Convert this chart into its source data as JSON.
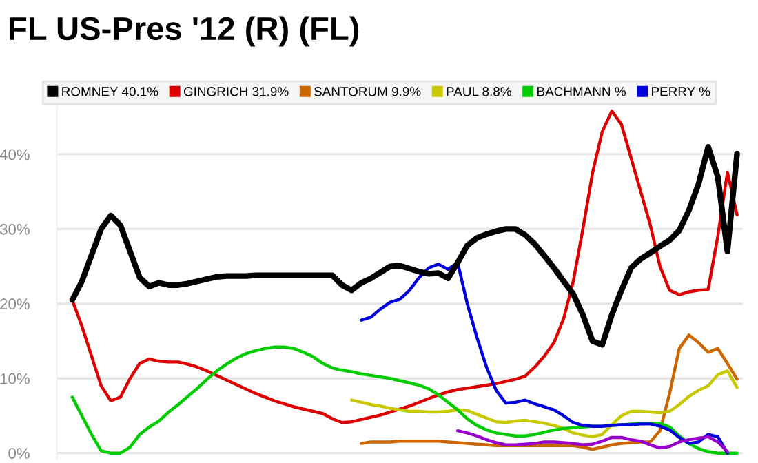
{
  "chart_data": {
    "type": "line",
    "title": "FL US-Pres '12 (R) (FL)",
    "categories": [
      null,
      null,
      null,
      null,
      null,
      null,
      null,
      null,
      null,
      null,
      null,
      null,
      null,
      null,
      null,
      null,
      null,
      null,
      null,
      null,
      null,
      null,
      null,
      null,
      null,
      null,
      null,
      null,
      null,
      null,
      null,
      null,
      null,
      null,
      null,
      null,
      null,
      null,
      null,
      null,
      null,
      null,
      null,
      null,
      null,
      null,
      null,
      null,
      null,
      null,
      null,
      null,
      null,
      null,
      null,
      null,
      null,
      null,
      null,
      null,
      null,
      null,
      null,
      null,
      null,
      null,
      null,
      null,
      null,
      null
    ],
    "series": [
      {
        "name": "ROMNEY 40.1%",
        "color": "#000000",
        "values": [
          20.5,
          23,
          26.5,
          30,
          31.8,
          30.5,
          27,
          23.5,
          22.3,
          22.8,
          22.5,
          22.5,
          22.7,
          23,
          23.3,
          23.6,
          23.7,
          23.7,
          23.7,
          23.8,
          23.8,
          23.8,
          23.8,
          23.8,
          23.8,
          23.8,
          23.8,
          23.8,
          22.5,
          21.8,
          22.8,
          23.4,
          24.2,
          25,
          25.1,
          24.7,
          24.3,
          24,
          24.1,
          23.4,
          25.5,
          27.8,
          28.8,
          29.3,
          29.7,
          30,
          30,
          29.2,
          28,
          26.4,
          24.8,
          23,
          21.3,
          18.5,
          15,
          14.5,
          18.5,
          21.8,
          24.8,
          26,
          26.8,
          27.7,
          28.5,
          29.8,
          32.5,
          36,
          41,
          37,
          27,
          40.1
        ]
      },
      {
        "name": "GINGRICH 31.9%",
        "color": "#dd0000",
        "values": [
          20.5,
          17,
          13,
          9,
          7,
          7.5,
          10,
          12,
          12.6,
          12.3,
          12.2,
          12.2,
          11.9,
          11.5,
          11,
          10.4,
          9.8,
          9.2,
          8.6,
          8,
          7.5,
          7,
          6.6,
          6.2,
          5.9,
          5.6,
          5.3,
          4.6,
          4.1,
          4.2,
          4.5,
          4.8,
          5.1,
          5.5,
          5.9,
          6.3,
          6.8,
          7.3,
          7.8,
          8.2,
          8.5,
          8.7,
          8.9,
          9.1,
          9.3,
          9.6,
          9.9,
          10.3,
          11.5,
          13,
          14.8,
          18,
          23,
          30,
          37.5,
          43,
          45.8,
          44,
          39.5,
          35,
          30.5,
          25,
          21.8,
          21.2,
          21.6,
          21.8,
          21.9,
          29,
          37.6,
          31.9
        ]
      },
      {
        "name": "SANTORUM 9.9%",
        "color": "#cc6600",
        "values": [
          null,
          null,
          null,
          null,
          null,
          null,
          null,
          null,
          null,
          null,
          null,
          null,
          null,
          null,
          null,
          null,
          null,
          null,
          null,
          null,
          null,
          null,
          null,
          null,
          null,
          null,
          null,
          null,
          null,
          null,
          1.3,
          1.5,
          1.5,
          1.5,
          1.6,
          1.6,
          1.6,
          1.6,
          1.6,
          1.5,
          1.4,
          1.3,
          1.2,
          1.1,
          1,
          1,
          1,
          1,
          1,
          1,
          1,
          1,
          1,
          0.8,
          0.5,
          0.8,
          1.1,
          1.3,
          1.4,
          1.5,
          1.5,
          3,
          8,
          14,
          15.8,
          14.8,
          13.5,
          14,
          12,
          9.9
        ]
      },
      {
        "name": "PAUL 8.8%",
        "color": "#c8c800",
        "values": [
          null,
          null,
          null,
          null,
          null,
          null,
          null,
          null,
          null,
          null,
          null,
          null,
          null,
          null,
          null,
          null,
          null,
          null,
          null,
          null,
          null,
          null,
          null,
          null,
          null,
          null,
          null,
          null,
          null,
          7.1,
          6.8,
          6.5,
          6.3,
          6,
          5.8,
          5.6,
          5.6,
          5.5,
          5.5,
          5.6,
          5.8,
          5.7,
          5.2,
          4.7,
          4.2,
          4.1,
          4.3,
          4.4,
          4.2,
          4,
          3.7,
          3.3,
          2.7,
          2.4,
          2.2,
          2.5,
          3.8,
          5,
          5.6,
          5.6,
          5.5,
          5.4,
          5.6,
          6.5,
          7.6,
          8.4,
          9,
          10.5,
          11,
          8.8
        ]
      },
      {
        "name": "BACHMANN %",
        "color": "#00cc00",
        "values": [
          7.5,
          5,
          2.5,
          0.3,
          0,
          0,
          0.8,
          2.5,
          3.5,
          4.3,
          5.5,
          6.5,
          7.6,
          8.7,
          9.9,
          11,
          11.9,
          12.7,
          13.3,
          13.7,
          14,
          14.2,
          14.2,
          14,
          13.5,
          12.9,
          12,
          11.4,
          11.1,
          10.9,
          10.6,
          10.4,
          10.2,
          10,
          9.7,
          9.4,
          9.1,
          8.6,
          7.8,
          6.8,
          5.8,
          4.6,
          3.7,
          3.1,
          2.7,
          2.5,
          2.3,
          2.3,
          2.5,
          2.8,
          3.1,
          3.3,
          3.4,
          3.5,
          3.6,
          3.6,
          3.7,
          3.8,
          3.9,
          4,
          4,
          4,
          3.5,
          2.3,
          1.3,
          0.6,
          0.2,
          0,
          0,
          0
        ]
      },
      {
        "name": "PERRY %",
        "color": "#0000dd",
        "values": [
          null,
          null,
          null,
          null,
          null,
          null,
          null,
          null,
          null,
          null,
          null,
          null,
          null,
          null,
          null,
          null,
          null,
          null,
          null,
          null,
          null,
          null,
          null,
          null,
          null,
          null,
          null,
          null,
          null,
          null,
          17.8,
          18.2,
          19.3,
          20.2,
          20.6,
          21.8,
          23.5,
          24.8,
          25.3,
          24.6,
          25.5,
          20,
          15.5,
          11.5,
          8.4,
          6.7,
          6.8,
          7.1,
          6.6,
          6.2,
          5.8,
          5,
          4.1,
          3.7,
          3.6,
          3.6,
          3.7,
          3.8,
          3.8,
          3.9,
          3.9,
          3.6,
          3.1,
          2.1,
          1.3,
          1.5,
          2.5,
          2.2,
          0,
          null
        ]
      },
      {
        "color": "#9900cc",
        "values": [
          null,
          null,
          null,
          null,
          null,
          null,
          null,
          null,
          null,
          null,
          null,
          null,
          null,
          null,
          null,
          null,
          null,
          null,
          null,
          null,
          null,
          null,
          null,
          null,
          null,
          null,
          null,
          null,
          null,
          null,
          null,
          null,
          null,
          null,
          null,
          null,
          null,
          null,
          null,
          null,
          3,
          2.7,
          2.3,
          1.8,
          1.4,
          1.1,
          1.1,
          1.2,
          1.3,
          1.5,
          1.5,
          1.4,
          1.3,
          1.1,
          1.2,
          1.6,
          2.1,
          2.1,
          1.8,
          1.6,
          1.1,
          0.7,
          0.9,
          1.5,
          1.8,
          2,
          2.2,
          1.5,
          0.2,
          null
        ]
      }
    ],
    "ylim": [
      -0.7,
      46.4
    ],
    "yticks": [
      {
        "value": 0,
        "label": "0%"
      },
      {
        "value": 10,
        "label": "10%"
      },
      {
        "value": 20,
        "label": "20%"
      },
      {
        "value": 30,
        "label": "30%"
      },
      {
        "value": 40,
        "label": "40%"
      }
    ],
    "grid": "y",
    "legend": "top",
    "marker": "none",
    "line_style": "solid"
  }
}
